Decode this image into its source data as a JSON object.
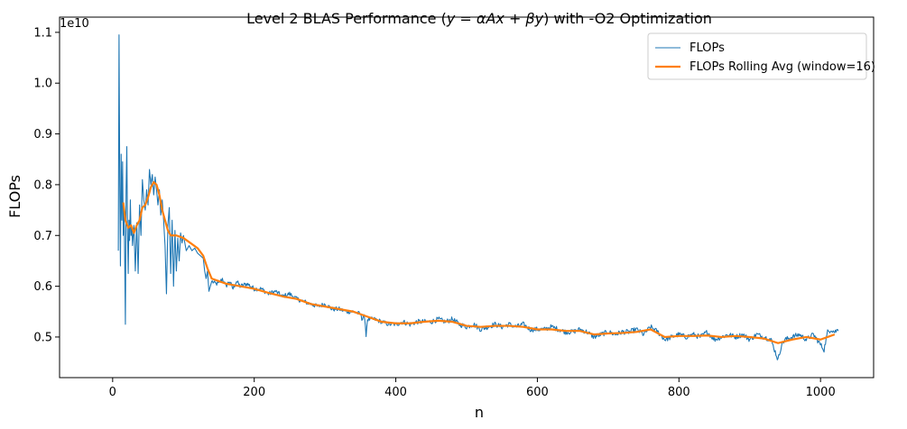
{
  "chart_data": {
    "type": "line",
    "title_parts": [
      "Level 2 BLAS Performance (",
      "y = αAx + βy",
      ") with -O2 Optimization"
    ],
    "xlabel": "n",
    "ylabel": "FLOPs",
    "y_scale_label": "1e10",
    "y_scale_factor": 10000000000,
    "xlim": [
      -75,
      1075
    ],
    "ylim": [
      4.2,
      11.3
    ],
    "x_ticks": [
      0,
      200,
      400,
      600,
      800,
      1000
    ],
    "y_ticks": [
      0.5,
      0.6,
      0.7,
      0.8,
      0.9,
      1.0,
      1.1
    ],
    "grid": false,
    "legend_position": "top-right",
    "series": [
      {
        "name": "FLOPs",
        "color": "#1f77b4",
        "keypoints": [
          [
            8,
            6.7
          ],
          [
            9,
            10.95
          ],
          [
            10,
            8.1
          ],
          [
            11,
            6.4
          ],
          [
            12,
            8.6
          ],
          [
            13,
            7.3
          ],
          [
            14,
            8.45
          ],
          [
            15,
            7.0
          ],
          [
            16,
            7.6
          ],
          [
            17,
            6.6
          ],
          [
            18,
            5.25
          ],
          [
            19,
            7.9
          ],
          [
            20,
            8.75
          ],
          [
            21,
            7.1
          ],
          [
            22,
            6.25
          ],
          [
            23,
            7.3
          ],
          [
            24,
            6.9
          ],
          [
            25,
            7.7
          ],
          [
            26,
            7.0
          ],
          [
            27,
            7.2
          ],
          [
            28,
            6.8
          ],
          [
            30,
            7.2
          ],
          [
            32,
            6.3
          ],
          [
            34,
            7.25
          ],
          [
            36,
            6.25
          ],
          [
            38,
            7.6
          ],
          [
            40,
            7.0
          ],
          [
            42,
            8.1
          ],
          [
            44,
            7.7
          ],
          [
            46,
            7.5
          ],
          [
            48,
            7.9
          ],
          [
            50,
            7.6
          ],
          [
            52,
            8.3
          ],
          [
            54,
            8.0
          ],
          [
            56,
            8.2
          ],
          [
            58,
            7.8
          ],
          [
            60,
            8.15
          ],
          [
            62,
            7.9
          ],
          [
            64,
            7.6
          ],
          [
            66,
            7.9
          ],
          [
            68,
            7.4
          ],
          [
            70,
            7.7
          ],
          [
            72,
            7.3
          ],
          [
            74,
            6.8
          ],
          [
            76,
            5.85
          ],
          [
            78,
            7.2
          ],
          [
            80,
            7.55
          ],
          [
            82,
            6.25
          ],
          [
            84,
            7.3
          ],
          [
            86,
            6.0
          ],
          [
            88,
            7.1
          ],
          [
            90,
            6.3
          ],
          [
            92,
            6.95
          ],
          [
            94,
            6.5
          ],
          [
            96,
            7.05
          ],
          [
            98,
            6.85
          ],
          [
            100,
            7.0
          ],
          [
            104,
            6.7
          ],
          [
            108,
            6.8
          ],
          [
            112,
            6.7
          ],
          [
            116,
            6.75
          ],
          [
            120,
            6.65
          ],
          [
            124,
            6.6
          ],
          [
            128,
            6.55
          ],
          [
            130,
            6.3
          ],
          [
            132,
            6.15
          ],
          [
            134,
            6.3
          ],
          [
            136,
            5.9
          ],
          [
            140,
            6.1
          ],
          [
            145,
            6.05
          ],
          [
            150,
            6.05
          ],
          [
            155,
            6.15
          ],
          [
            160,
            6.0
          ],
          [
            165,
            6.1
          ],
          [
            170,
            5.95
          ],
          [
            175,
            6.1
          ],
          [
            180,
            6.0
          ],
          [
            190,
            6.05
          ],
          [
            200,
            5.95
          ],
          [
            210,
            5.95
          ],
          [
            220,
            5.85
          ],
          [
            230,
            5.9
          ],
          [
            240,
            5.8
          ],
          [
            250,
            5.85
          ],
          [
            260,
            5.75
          ],
          [
            270,
            5.7
          ],
          [
            280,
            5.65
          ],
          [
            290,
            5.6
          ],
          [
            300,
            5.65
          ],
          [
            310,
            5.55
          ],
          [
            320,
            5.55
          ],
          [
            330,
            5.5
          ],
          [
            340,
            5.5
          ],
          [
            350,
            5.45
          ],
          [
            352,
            5.35
          ],
          [
            355,
            5.45
          ],
          [
            358,
            5.05
          ],
          [
            360,
            5.35
          ],
          [
            370,
            5.35
          ],
          [
            380,
            5.3
          ],
          [
            390,
            5.25
          ],
          [
            400,
            5.25
          ],
          [
            410,
            5.3
          ],
          [
            420,
            5.25
          ],
          [
            430,
            5.3
          ],
          [
            440,
            5.3
          ],
          [
            450,
            5.3
          ],
          [
            460,
            5.35
          ],
          [
            470,
            5.3
          ],
          [
            480,
            5.35
          ],
          [
            490,
            5.25
          ],
          [
            500,
            5.2
          ],
          [
            510,
            5.25
          ],
          [
            520,
            5.15
          ],
          [
            530,
            5.2
          ],
          [
            540,
            5.25
          ],
          [
            550,
            5.2
          ],
          [
            560,
            5.25
          ],
          [
            570,
            5.2
          ],
          [
            580,
            5.25
          ],
          [
            590,
            5.15
          ],
          [
            600,
            5.15
          ],
          [
            610,
            5.15
          ],
          [
            620,
            5.2
          ],
          [
            630,
            5.15
          ],
          [
            640,
            5.1
          ],
          [
            650,
            5.1
          ],
          [
            660,
            5.15
          ],
          [
            670,
            5.1
          ],
          [
            680,
            5.0
          ],
          [
            690,
            5.05
          ],
          [
            700,
            5.1
          ],
          [
            710,
            5.05
          ],
          [
            720,
            5.1
          ],
          [
            730,
            5.1
          ],
          [
            740,
            5.15
          ],
          [
            750,
            5.05
          ],
          [
            760,
            5.2
          ],
          [
            770,
            5.1
          ],
          [
            780,
            4.95
          ],
          [
            790,
            5.0
          ],
          [
            800,
            5.05
          ],
          [
            810,
            5.0
          ],
          [
            820,
            5.05
          ],
          [
            830,
            5.0
          ],
          [
            840,
            5.1
          ],
          [
            850,
            4.95
          ],
          [
            860,
            5.0
          ],
          [
            870,
            5.05
          ],
          [
            880,
            5.0
          ],
          [
            890,
            5.05
          ],
          [
            900,
            4.95
          ],
          [
            910,
            5.05
          ],
          [
            920,
            5.0
          ],
          [
            930,
            4.95
          ],
          [
            940,
            4.55
          ],
          [
            945,
            4.85
          ],
          [
            950,
            4.95
          ],
          [
            960,
            5.0
          ],
          [
            970,
            5.05
          ],
          [
            980,
            4.95
          ],
          [
            990,
            5.05
          ],
          [
            1000,
            4.85
          ],
          [
            1005,
            4.75
          ],
          [
            1010,
            5.1
          ],
          [
            1015,
            5.15
          ],
          [
            1020,
            5.1
          ],
          [
            1025,
            5.15
          ]
        ]
      },
      {
        "name": "FLOPs Rolling Avg (window=16)",
        "color": "#ff7f0e",
        "keypoints": [
          [
            15,
            7.65
          ],
          [
            18,
            7.3
          ],
          [
            22,
            7.15
          ],
          [
            26,
            7.2
          ],
          [
            30,
            7.05
          ],
          [
            34,
            7.2
          ],
          [
            38,
            7.3
          ],
          [
            42,
            7.55
          ],
          [
            46,
            7.6
          ],
          [
            50,
            7.75
          ],
          [
            54,
            7.95
          ],
          [
            58,
            8.05
          ],
          [
            62,
            8.0
          ],
          [
            66,
            7.8
          ],
          [
            70,
            7.5
          ],
          [
            74,
            7.3
          ],
          [
            78,
            7.1
          ],
          [
            82,
            7.0
          ],
          [
            90,
            7.0
          ],
          [
            100,
            6.95
          ],
          [
            110,
            6.85
          ],
          [
            120,
            6.75
          ],
          [
            128,
            6.6
          ],
          [
            134,
            6.35
          ],
          [
            140,
            6.15
          ],
          [
            150,
            6.1
          ],
          [
            160,
            6.05
          ],
          [
            180,
            6.0
          ],
          [
            200,
            5.95
          ],
          [
            220,
            5.87
          ],
          [
            240,
            5.8
          ],
          [
            260,
            5.75
          ],
          [
            280,
            5.65
          ],
          [
            300,
            5.6
          ],
          [
            320,
            5.55
          ],
          [
            340,
            5.5
          ],
          [
            360,
            5.4
          ],
          [
            380,
            5.3
          ],
          [
            400,
            5.27
          ],
          [
            420,
            5.27
          ],
          [
            440,
            5.3
          ],
          [
            460,
            5.32
          ],
          [
            480,
            5.3
          ],
          [
            500,
            5.22
          ],
          [
            520,
            5.2
          ],
          [
            540,
            5.22
          ],
          [
            560,
            5.22
          ],
          [
            580,
            5.2
          ],
          [
            600,
            5.15
          ],
          [
            620,
            5.15
          ],
          [
            640,
            5.12
          ],
          [
            660,
            5.12
          ],
          [
            680,
            5.05
          ],
          [
            700,
            5.07
          ],
          [
            720,
            5.08
          ],
          [
            740,
            5.1
          ],
          [
            760,
            5.15
          ],
          [
            780,
            5.0
          ],
          [
            800,
            5.02
          ],
          [
            820,
            5.02
          ],
          [
            840,
            5.03
          ],
          [
            860,
            5.0
          ],
          [
            880,
            5.02
          ],
          [
            900,
            5.0
          ],
          [
            920,
            4.97
          ],
          [
            940,
            4.88
          ],
          [
            960,
            4.95
          ],
          [
            980,
            5.0
          ],
          [
            1000,
            4.95
          ],
          [
            1010,
            5.0
          ],
          [
            1020,
            5.05
          ]
        ]
      }
    ]
  }
}
